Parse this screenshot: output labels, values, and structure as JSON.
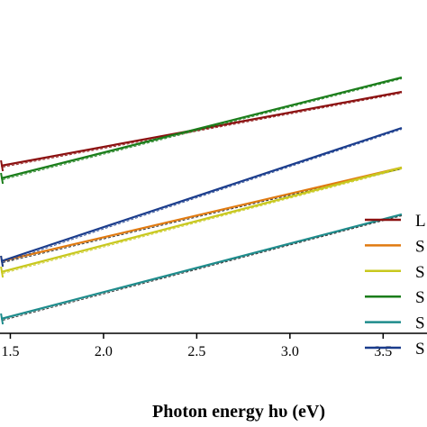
{
  "chart_data": {
    "type": "line",
    "xlabel": "Photon energy hυ (eV)",
    "ylabel": "",
    "title": "",
    "xlim": [
      1.0,
      3.6
    ],
    "ylim": [
      0,
      10
    ],
    "x_ticks": [
      "1.5",
      "2.0",
      "2.5",
      "3.0",
      "3.5"
    ],
    "x_tick_values": [
      1.5,
      2.0,
      2.5,
      3.0,
      3.5
    ],
    "legend": {
      "placement": "right",
      "visible_label_prefixes": [
        "L",
        "S",
        "S",
        "S",
        "S",
        "S"
      ]
    },
    "series": [
      {
        "name": "L",
        "color": "#8b1010",
        "fit_color": "#8b1010",
        "x": [
          1.45,
          3.6
        ],
        "y": [
          8.65,
          10.7
        ]
      },
      {
        "name": "S",
        "color": "#e07a10",
        "fit_color": "#1a1a1a",
        "x": [
          1.45,
          3.6
        ],
        "y": [
          6.0,
          8.6
        ]
      },
      {
        "name": "S",
        "color": "#c8c81e",
        "fit_color": "#c8c81e",
        "x": [
          1.45,
          3.6
        ],
        "y": [
          5.7,
          8.6
        ]
      },
      {
        "name": "S",
        "color": "#1a7d1a",
        "fit_color": "#1a7d1a",
        "x": [
          1.45,
          3.6
        ],
        "y": [
          8.3,
          11.1
        ]
      },
      {
        "name": "S",
        "color": "#1e8c8c",
        "fit_color": "#1a1a1a",
        "x": [
          1.45,
          3.6
        ],
        "y": [
          4.4,
          7.3
        ]
      },
      {
        "name": "S",
        "color": "#1a3c8c",
        "fit_color": "#1a3c8c",
        "x": [
          1.45,
          3.6
        ],
        "y": [
          6.0,
          9.7
        ]
      }
    ]
  }
}
